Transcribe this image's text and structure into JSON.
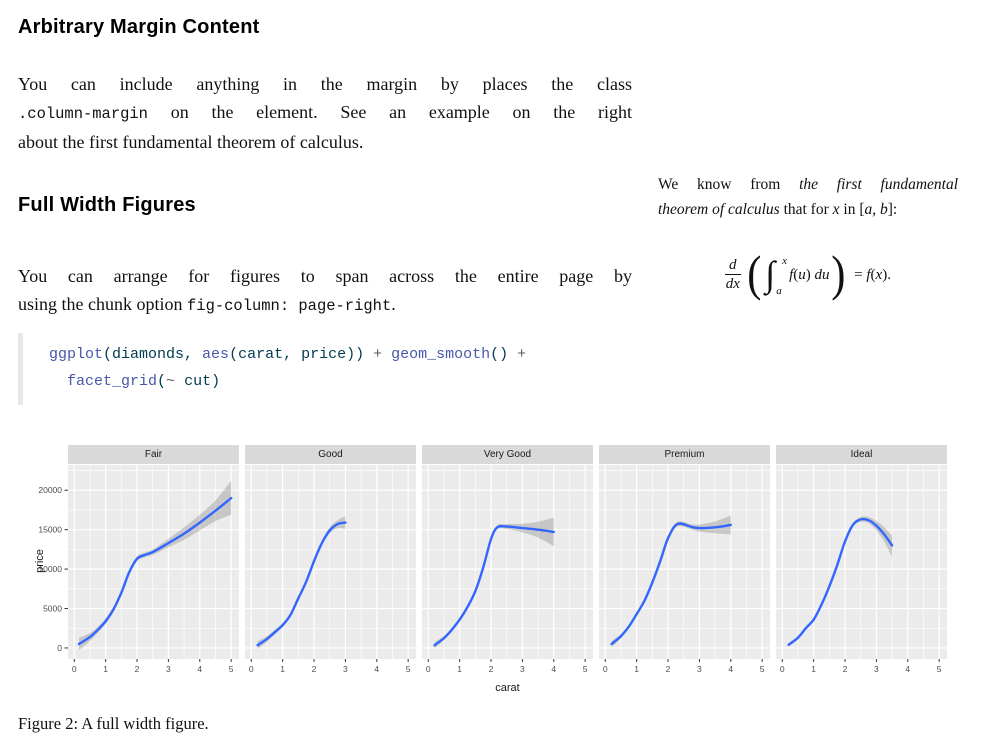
{
  "sections": {
    "s1": {
      "title": "Arbitrary Margin Content",
      "paragraph": [
        {
          "just": true,
          "segs": [
            {
              "t": "You can include anything in the margin by places the class"
            }
          ]
        },
        {
          "just": true,
          "segs": [
            {
              "t": ".column-margin",
              "c": "code"
            },
            {
              "t": " on the element. See an example on the right"
            }
          ]
        },
        {
          "just": false,
          "segs": [
            {
              "t": "about the first fundamental theorem of calculus."
            }
          ]
        }
      ]
    },
    "s2": {
      "title": "Full Width Figures",
      "paragraph": [
        {
          "just": true,
          "segs": [
            {
              "t": "You can arrange for figures to span across the entire page by"
            }
          ]
        },
        {
          "just": false,
          "segs": [
            {
              "t": "using the chunk option "
            },
            {
              "t": "fig-column: page-right",
              "c": "code"
            },
            {
              "t": "."
            }
          ]
        }
      ]
    }
  },
  "margin_note": {
    "text": [
      {
        "just": true,
        "segs": [
          {
            "t": "We know from "
          },
          {
            "t": "the first fundamental",
            "c": "em"
          }
        ]
      },
      {
        "just": false,
        "segs": [
          {
            "t": "theorem of calculus",
            "c": "em"
          },
          {
            "t": " that for "
          },
          {
            "t": "x",
            "c": "math"
          },
          {
            "t": " in ["
          },
          {
            "t": "a",
            "c": "math"
          },
          {
            "t": ", "
          },
          {
            "t": "b",
            "c": "math"
          },
          {
            "t": "]:"
          }
        ]
      }
    ],
    "formula": {
      "num": "d",
      "den": "dx",
      "lparen": "(",
      "rparen": ")",
      "integral": "∫",
      "upper": "x",
      "lower": "a",
      "body": [
        {
          "t": "f",
          "c": "math"
        },
        {
          "t": "("
        },
        {
          "t": "u",
          "c": "math"
        },
        {
          "t": ") "
        },
        {
          "t": "du",
          "c": "math"
        }
      ],
      "rhs": [
        {
          "t": "= "
        },
        {
          "t": "f",
          "c": "math"
        },
        {
          "t": "("
        },
        {
          "t": "x",
          "c": "math"
        },
        {
          "t": ")."
        }
      ]
    }
  },
  "code_block": {
    "lines": [
      [
        {
          "t": "ggplot",
          "c": "fu"
        },
        {
          "t": "(diamonds, ",
          "c": "va"
        },
        {
          "t": "aes",
          "c": "fu"
        },
        {
          "t": "(carat, price)) ",
          "c": "va"
        },
        {
          "t": "+",
          "c": "op"
        },
        {
          "t": " ",
          "c": "va"
        },
        {
          "t": "geom_smooth",
          "c": "fu"
        },
        {
          "t": "() ",
          "c": "va"
        },
        {
          "t": "+",
          "c": "op"
        }
      ],
      [
        {
          "t": "  ",
          "c": "va"
        },
        {
          "t": "facet_grid",
          "c": "fu"
        },
        {
          "t": "(",
          "c": "va"
        },
        {
          "t": "~",
          "c": "op"
        },
        {
          "t": " cut)",
          "c": "va"
        }
      ]
    ]
  },
  "caption": "Figure 2: A full width figure.",
  "chart_data": {
    "type": "line",
    "title": "",
    "xlabel": "carat",
    "ylabel": "price",
    "legend": "none",
    "grid": "on",
    "xlim": [
      -0.2,
      5.25
    ],
    "ylim": [
      -1400,
      23200
    ],
    "x_major_ticks": [
      0,
      1,
      2,
      3,
      4,
      5
    ],
    "y_major_ticks": [
      0,
      5000,
      10000,
      15000,
      20000
    ],
    "x_minor_ticks": [
      0.5,
      1.5,
      2.5,
      3.5,
      4.5
    ],
    "y_minor_ticks": [
      2500,
      7500,
      12500,
      17500,
      22500
    ],
    "panel_bg": "#EBEBEB",
    "strip_bg": "#D9D9D9",
    "grid_color": "#FFFFFF",
    "line_color": "#3366FF",
    "ribbon_color": "rgba(125,125,125,0.33)",
    "tick_label_color": "#4D4D4D",
    "facets": [
      {
        "label": "Fair",
        "x": [
          0.15,
          0.5,
          0.75,
          1.0,
          1.25,
          1.5,
          1.75,
          2.0,
          2.25,
          2.5,
          3.0,
          3.5,
          4.0,
          4.5,
          5.0
        ],
        "y": [
          500,
          1400,
          2300,
          3400,
          4900,
          7000,
          9600,
          11300,
          11800,
          12150,
          13300,
          14500,
          15900,
          17400,
          19000
        ],
        "lo": [
          -300,
          900,
          1900,
          3050,
          4550,
          6700,
          9300,
          11000,
          11500,
          11800,
          12750,
          13700,
          14900,
          16100,
          16900
        ],
        "hi": [
          1300,
          1900,
          2700,
          3750,
          5250,
          7300,
          9900,
          11600,
          12100,
          12500,
          13850,
          15300,
          16900,
          18700,
          21200
        ]
      },
      {
        "label": "Good",
        "x": [
          0.2,
          0.5,
          0.75,
          1.0,
          1.25,
          1.5,
          1.75,
          2.0,
          2.25,
          2.5,
          2.75,
          3.0
        ],
        "y": [
          350,
          1150,
          2000,
          2900,
          4200,
          6300,
          8400,
          11000,
          13300,
          14900,
          15700,
          15900
        ],
        "lo": [
          -150,
          800,
          1700,
          2650,
          3950,
          6050,
          8150,
          10750,
          13000,
          14500,
          15200,
          15100
        ],
        "hi": [
          850,
          1500,
          2300,
          3150,
          4450,
          6550,
          8650,
          11250,
          13600,
          15300,
          16200,
          16700
        ]
      },
      {
        "label": "Very Good",
        "x": [
          0.2,
          0.5,
          0.75,
          1.0,
          1.25,
          1.5,
          1.75,
          2.0,
          2.2,
          2.5,
          3.0,
          3.5,
          4.0
        ],
        "y": [
          350,
          1250,
          2300,
          3600,
          5200,
          7200,
          10200,
          13800,
          15300,
          15400,
          15200,
          15000,
          14700
        ],
        "lo": [
          -50,
          1000,
          2100,
          3400,
          5000,
          7000,
          10000,
          13550,
          15050,
          15100,
          14650,
          14000,
          12900
        ],
        "hi": [
          750,
          1500,
          2500,
          3800,
          5400,
          7400,
          10400,
          14050,
          15550,
          15700,
          15750,
          16000,
          16500
        ]
      },
      {
        "label": "Premium",
        "x": [
          0.2,
          0.5,
          0.75,
          1.0,
          1.25,
          1.5,
          1.75,
          2.0,
          2.3,
          2.75,
          3.0,
          3.5,
          4.0
        ],
        "y": [
          500,
          1500,
          2700,
          4300,
          6000,
          8300,
          11000,
          13900,
          15700,
          15350,
          15200,
          15300,
          15600
        ],
        "lo": [
          100,
          1250,
          2500,
          4100,
          5800,
          8100,
          10800,
          13650,
          15400,
          15000,
          14750,
          14550,
          14400
        ],
        "hi": [
          900,
          1750,
          2900,
          4500,
          6200,
          8500,
          11200,
          14150,
          16000,
          15700,
          15650,
          16050,
          16800
        ]
      },
      {
        "label": "Ideal",
        "x": [
          0.2,
          0.5,
          0.75,
          1.0,
          1.25,
          1.5,
          1.75,
          2.0,
          2.25,
          2.5,
          2.75,
          3.0,
          3.25,
          3.5
        ],
        "y": [
          400,
          1300,
          2500,
          3600,
          5500,
          7800,
          10500,
          13500,
          15600,
          16300,
          16200,
          15500,
          14400,
          13000
        ],
        "lo": [
          150,
          1100,
          2300,
          3400,
          5300,
          7600,
          10300,
          13250,
          15350,
          16000,
          15800,
          14900,
          13500,
          11500
        ],
        "hi": [
          650,
          1500,
          2700,
          3800,
          5700,
          8000,
          10700,
          13750,
          15850,
          16600,
          16600,
          16100,
          15300,
          14200
        ]
      }
    ]
  }
}
